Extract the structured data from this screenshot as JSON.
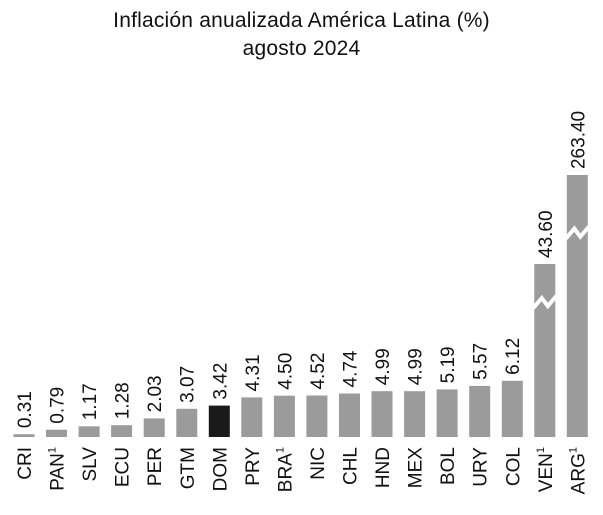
{
  "chart_data": {
    "type": "bar",
    "title": "Inflación anualizada América Latina (%)",
    "subtitle": "agosto 2024",
    "xlabel": "",
    "ylabel": "",
    "grid": false,
    "legend": "none",
    "axis_break": true,
    "categories": [
      "CRI",
      "PAN",
      "SLV",
      "ECU",
      "PER",
      "GTM",
      "DOM",
      "PRY",
      "BRA",
      "NIC",
      "CHL",
      "HND",
      "MEX",
      "BOL",
      "URY",
      "COL",
      "VEN",
      "ARG"
    ],
    "category_superscripts": [
      "",
      "1",
      "",
      "",
      "",
      "",
      "",
      "",
      "1",
      "",
      "",
      "",
      "",
      "",
      "",
      "",
      "1",
      "1"
    ],
    "values": [
      0.31,
      0.79,
      1.17,
      1.28,
      2.03,
      3.07,
      3.42,
      4.31,
      4.5,
      4.52,
      4.74,
      4.99,
      4.99,
      5.19,
      5.57,
      6.12,
      43.6,
      263.4
    ],
    "value_labels": [
      "0.31",
      "0.79",
      "1.17",
      "1.28",
      "2.03",
      "3.07",
      "3.42",
      "4.31",
      "4.50",
      "4.52",
      "4.74",
      "4.99",
      "4.99",
      "5.19",
      "5.57",
      "6.12",
      "43.60",
      "263.40"
    ],
    "highlight_category": "DOM",
    "colors": {
      "bar": "#9b9b9b",
      "highlight": "#1a1a1a",
      "text": "#111111",
      "break": "#ffffff"
    }
  }
}
